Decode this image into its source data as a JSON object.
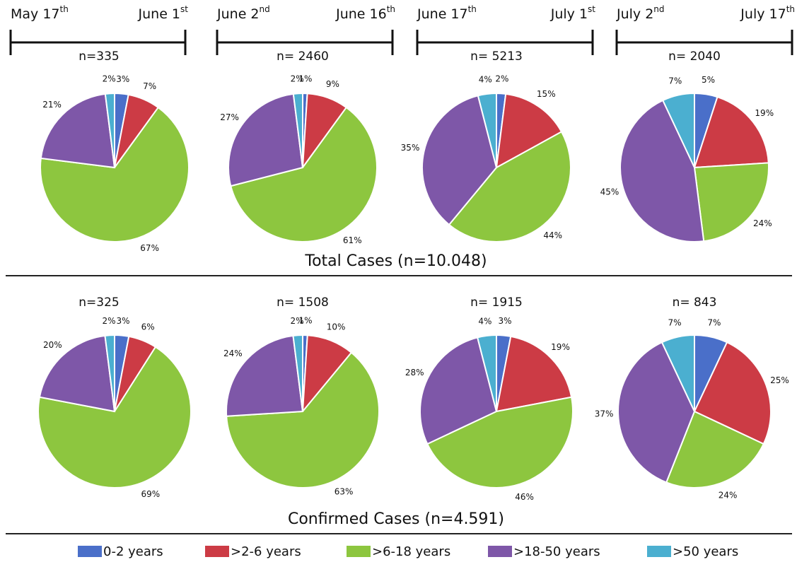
{
  "periods": [
    {
      "start": "May 17",
      "start_suffix": "th",
      "end": "June 1",
      "end_suffix": "st"
    },
    {
      "start": "June 2",
      "start_suffix": "nd",
      "end": "June 16",
      "end_suffix": "th"
    },
    {
      "start": "June 17",
      "start_suffix": "th",
      "end": "July 1",
      "end_suffix": "st"
    },
    {
      "start": "July 2",
      "start_suffix": "nd",
      "end": "July 17",
      "end_suffix": "th"
    }
  ],
  "sections": [
    {
      "title": "Total Cases (n=10.048)"
    },
    {
      "title": "Confirmed Cases (n=4.591)"
    }
  ],
  "legend": {
    "labels": [
      "0-2 years",
      ">2-6 years",
      ">6-18 years",
      ">18-50 years",
      ">50 years"
    ],
    "colors": [
      "#4a6fc9",
      "#cc3b45",
      "#8dc63f",
      "#7e57a8",
      "#4bafd0"
    ]
  },
  "chart_data": [
    {
      "type": "pie",
      "title": "n=335",
      "values": [
        3,
        7,
        67,
        21,
        2
      ],
      "value_labels": [
        "3%",
        "7%",
        "67%",
        "21%",
        "2%"
      ]
    },
    {
      "type": "pie",
      "title": "n= 2460",
      "values": [
        1,
        9,
        61,
        27,
        2
      ],
      "value_labels": [
        "1%",
        "9%",
        "61%",
        "27%",
        "2%"
      ]
    },
    {
      "type": "pie",
      "title": "n= 5213",
      "values": [
        2,
        15,
        44,
        35,
        4
      ],
      "value_labels": [
        "2%",
        "15%",
        "44%",
        "35%",
        "4%"
      ]
    },
    {
      "type": "pie",
      "title": "n= 2040",
      "values": [
        5,
        19,
        24,
        45,
        7
      ],
      "value_labels": [
        "5%",
        "19%",
        "24%",
        "45%",
        "7%"
      ]
    },
    {
      "type": "pie",
      "title": "n=325",
      "values": [
        3,
        6,
        69,
        20,
        2
      ],
      "value_labels": [
        "3%",
        "6%",
        "69%",
        "20%",
        "2%"
      ]
    },
    {
      "type": "pie",
      "title": "n= 1508",
      "values": [
        1,
        10,
        63,
        24,
        2
      ],
      "value_labels": [
        "1%",
        "10%",
        "63%",
        "24%",
        "2%"
      ]
    },
    {
      "type": "pie",
      "title": "n= 1915",
      "values": [
        3,
        19,
        46,
        28,
        4
      ],
      "value_labels": [
        "3%",
        "19%",
        "46%",
        "28%",
        "4%"
      ]
    },
    {
      "type": "pie",
      "title": "n= 843",
      "values": [
        7,
        25,
        24,
        37,
        7
      ],
      "value_labels": [
        "7%",
        "25%",
        "24%",
        "37%",
        "7%"
      ]
    }
  ]
}
